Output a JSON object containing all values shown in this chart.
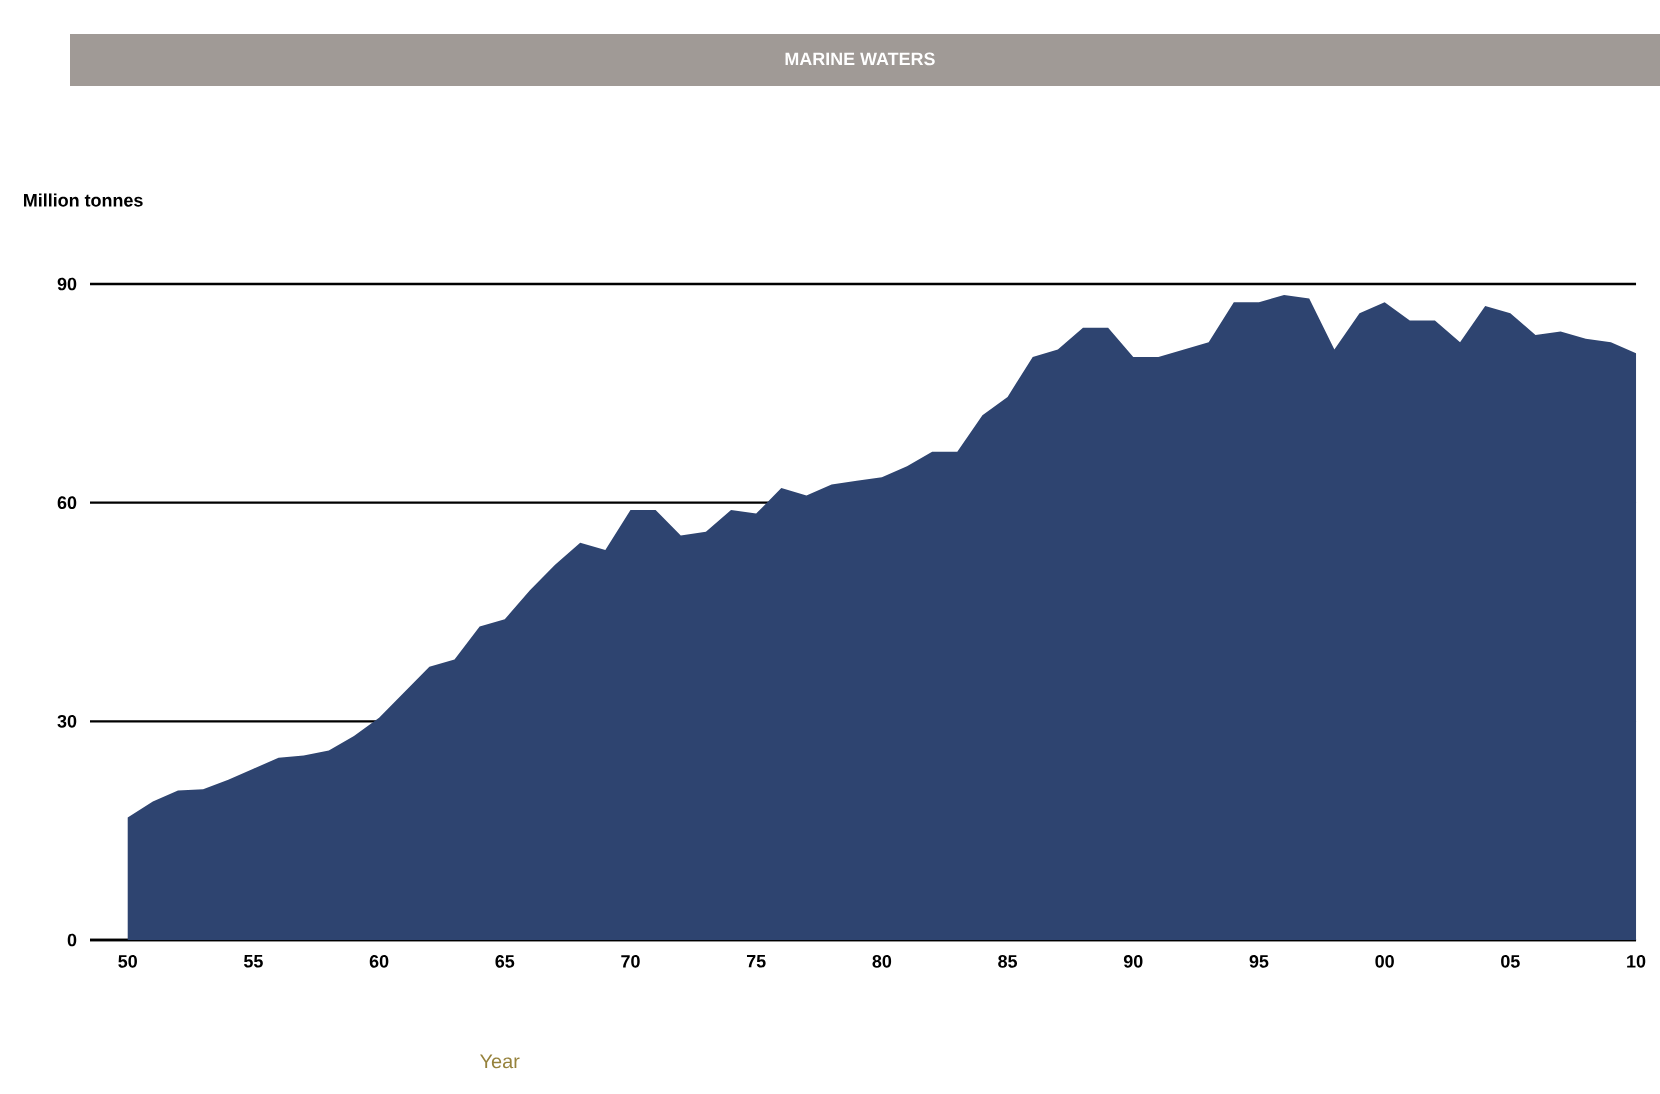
{
  "chart_data": {
    "type": "area",
    "title": "MARINE WATERS",
    "ylabel": "Million tonnes",
    "xlabel": "Year",
    "x": [
      1950,
      1951,
      1952,
      1953,
      1954,
      1955,
      1956,
      1957,
      1958,
      1959,
      1960,
      1961,
      1962,
      1963,
      1964,
      1965,
      1966,
      1967,
      1968,
      1969,
      1970,
      1971,
      1972,
      1973,
      1974,
      1975,
      1976,
      1977,
      1978,
      1979,
      1980,
      1981,
      1982,
      1983,
      1984,
      1985,
      1986,
      1987,
      1988,
      1989,
      1990,
      1991,
      1992,
      1993,
      1994,
      1995,
      1996,
      1997,
      1998,
      1999,
      2000,
      2001,
      2002,
      2003,
      2004,
      2005,
      2006,
      2007,
      2008,
      2009,
      2010
    ],
    "values": [
      16.8,
      19,
      20.5,
      20.7,
      22,
      23.5,
      25,
      25.3,
      26,
      28,
      30.5,
      34,
      37.5,
      38.5,
      43,
      44,
      48,
      51.5,
      54.5,
      53.5,
      59,
      59,
      55.5,
      56,
      59,
      58.5,
      62,
      61,
      62.5,
      63,
      63.5,
      65,
      67,
      67,
      72,
      74.5,
      80,
      81,
      84,
      84,
      80,
      80,
      81,
      82,
      87.5,
      87.5,
      88.5,
      88,
      81,
      86,
      87.5,
      85,
      85,
      82,
      87,
      86,
      83,
      83.5,
      82.5,
      82,
      80.5
    ],
    "color": "#2e4470",
    "xlim": [
      1948.5,
      2010
    ],
    "xticks": [
      {
        "value": 1950,
        "label": "50"
      },
      {
        "value": 1955,
        "label": "55"
      },
      {
        "value": 1960,
        "label": "60"
      },
      {
        "value": 1965,
        "label": "65"
      },
      {
        "value": 1970,
        "label": "70"
      },
      {
        "value": 1975,
        "label": "75"
      },
      {
        "value": 1980,
        "label": "80"
      },
      {
        "value": 1985,
        "label": "85"
      },
      {
        "value": 1990,
        "label": "90"
      },
      {
        "value": 1995,
        "label": "95"
      },
      {
        "value": 2000,
        "label": "00"
      },
      {
        "value": 2005,
        "label": "05"
      },
      {
        "value": 2010,
        "label": "10"
      }
    ],
    "ylim": [
      0,
      90
    ],
    "yticks": [
      0,
      30,
      60,
      90
    ],
    "grid": "y"
  }
}
